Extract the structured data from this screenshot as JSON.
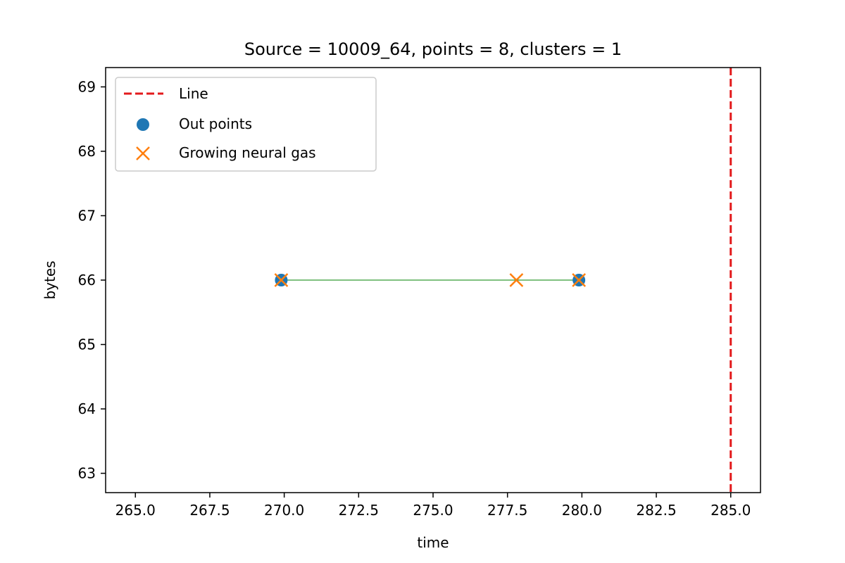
{
  "chart_data": {
    "type": "scatter",
    "title": "Source = 10009_64, points = 8, clusters = 1",
    "xlabel": "time",
    "ylabel": "bytes",
    "xlim": [
      264.0,
      286.0
    ],
    "ylim": [
      62.7,
      69.3
    ],
    "xticks": [
      265.0,
      267.5,
      270.0,
      272.5,
      275.0,
      277.5,
      280.0,
      282.5,
      285.0
    ],
    "xtick_labels": [
      "265.0",
      "267.5",
      "270.0",
      "272.5",
      "275.0",
      "277.5",
      "280.0",
      "282.5",
      "285.0"
    ],
    "yticks": [
      63,
      64,
      65,
      66,
      67,
      68,
      69
    ],
    "ytick_labels": [
      "63",
      "64",
      "65",
      "66",
      "67",
      "68",
      "69"
    ],
    "grid": false,
    "legend_position": "top-left",
    "vertical_line": {
      "name": "Line",
      "x": 285.0,
      "color": "#e31a1c",
      "style": "dashed"
    },
    "series": [
      {
        "name": "Out points",
        "marker": "circle",
        "color": "#1f77b4",
        "points": [
          {
            "x": 269.9,
            "y": 66
          },
          {
            "x": 279.9,
            "y": 66
          }
        ]
      },
      {
        "name": "Growing neural gas",
        "marker": "x",
        "color": "#ff7f0e",
        "points": [
          {
            "x": 269.9,
            "y": 66
          },
          {
            "x": 277.8,
            "y": 66
          },
          {
            "x": 279.9,
            "y": 66
          }
        ]
      }
    ],
    "edges": [
      {
        "from": {
          "x": 269.9,
          "y": 66
        },
        "to": {
          "x": 279.9,
          "y": 66
        },
        "color": "#008000"
      }
    ],
    "legend": [
      {
        "label": "Line",
        "marker": "dashed-line",
        "color": "#e31a1c"
      },
      {
        "label": "Out points",
        "marker": "circle",
        "color": "#1f77b4"
      },
      {
        "label": "Growing neural gas",
        "marker": "x",
        "color": "#ff7f0e"
      }
    ]
  }
}
